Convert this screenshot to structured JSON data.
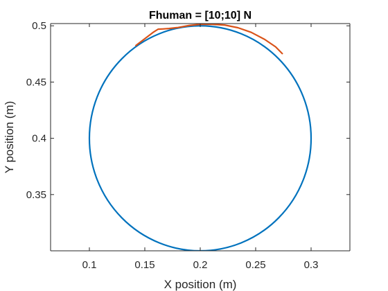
{
  "chart_data": {
    "type": "line",
    "title": "Fhuman = [10;10] N",
    "xlabel": "X position (m)",
    "ylabel": "Y position (m)",
    "xlim": [
      0.065,
      0.335
    ],
    "ylim": [
      0.3,
      0.502
    ],
    "xticks": [
      0.1,
      0.15,
      0.2,
      0.25,
      0.3
    ],
    "xtick_labels": [
      "0.1",
      "0.15",
      "0.2",
      "0.25",
      "0.3"
    ],
    "yticks": [
      0.35,
      0.4,
      0.45,
      0.5
    ],
    "ytick_labels": [
      "0.35",
      "0.4",
      "0.45",
      "0.5"
    ],
    "grid": false,
    "box": true,
    "series": [
      {
        "kind": "circle",
        "center": [
          0.2,
          0.4
        ],
        "radius": 0.1,
        "color": "#0072BD"
      },
      {
        "kind": "path",
        "color": "#D95319",
        "x": [
          0.142,
          0.15,
          0.158,
          0.162,
          0.166,
          0.172,
          0.18,
          0.19,
          0.2,
          0.21,
          0.222,
          0.234,
          0.246,
          0.258,
          0.268,
          0.274
        ],
        "y": [
          0.4825,
          0.4885,
          0.4945,
          0.497,
          0.4972,
          0.4976,
          0.4985,
          0.5003,
          0.5013,
          0.5014,
          0.5007,
          0.4983,
          0.4942,
          0.488,
          0.4813,
          0.4753
        ]
      }
    ],
    "colors": {
      "axis": "#262626",
      "background": "#ffffff"
    }
  }
}
